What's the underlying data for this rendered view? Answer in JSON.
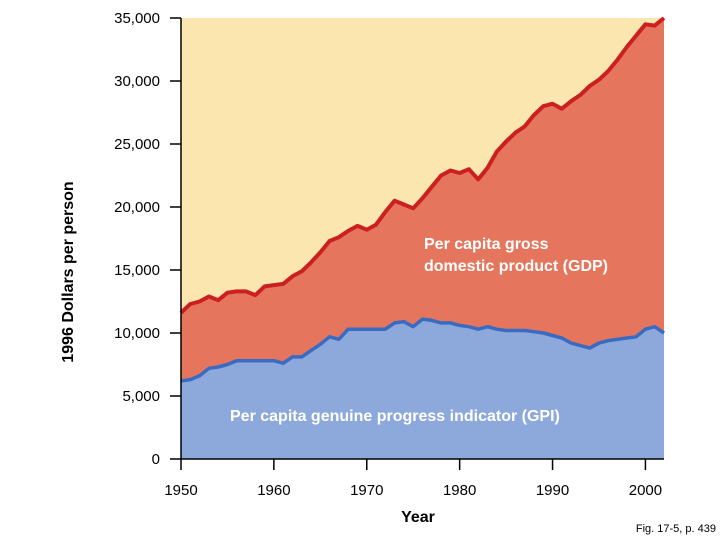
{
  "chart_data": {
    "type": "area",
    "title": "",
    "xlabel": "Year",
    "ylabel": "1996 Dollars per person",
    "xlim": [
      1950,
      2002
    ],
    "ylim": [
      0,
      35000
    ],
    "x_ticks": [
      1950,
      1960,
      1970,
      1980,
      1990,
      2000
    ],
    "y_ticks": [
      0,
      5000,
      10000,
      15000,
      20000,
      25000,
      30000,
      35000
    ],
    "y_tick_labels": [
      "0",
      "5,000",
      "10,000",
      "15,000",
      "20,000",
      "25,000",
      "30,000",
      "35,000"
    ],
    "x": [
      1950,
      1951,
      1952,
      1953,
      1954,
      1955,
      1956,
      1957,
      1958,
      1959,
      1960,
      1961,
      1962,
      1963,
      1964,
      1965,
      1966,
      1967,
      1968,
      1969,
      1970,
      1971,
      1972,
      1973,
      1974,
      1975,
      1976,
      1977,
      1978,
      1979,
      1980,
      1981,
      1982,
      1983,
      1984,
      1985,
      1986,
      1987,
      1988,
      1989,
      1990,
      1991,
      1992,
      1993,
      1994,
      1995,
      1996,
      1997,
      1998,
      1999,
      2000,
      2001,
      2002
    ],
    "series": [
      {
        "name": "Per capita gross domestic product (GDP)",
        "color": "#E5765D",
        "line_color": "#CC1F1F",
        "values": [
          11600,
          12300,
          12500,
          12900,
          12600,
          13200,
          13300,
          13300,
          13000,
          13700,
          13800,
          13900,
          14500,
          14900,
          15600,
          16400,
          17300,
          17600,
          18100,
          18500,
          18200,
          18600,
          19600,
          20500,
          20200,
          19900,
          20700,
          21600,
          22500,
          22900,
          22700,
          23000,
          22200,
          23100,
          24400,
          25200,
          25900,
          26400,
          27300,
          28000,
          28200,
          27800,
          28400,
          28900,
          29600,
          30100,
          30800,
          31700,
          32700,
          33600,
          34500,
          34400,
          35000
        ]
      },
      {
        "name": "Per capita genuine progress indicator (GPI)",
        "color": "#8DA9DC",
        "line_color": "#3A6BC2",
        "values": [
          6200,
          6300,
          6600,
          7200,
          7300,
          7500,
          7800,
          7800,
          7800,
          7800,
          7800,
          7600,
          8100,
          8100,
          8600,
          9100,
          9700,
          9500,
          10300,
          10300,
          10300,
          10300,
          10300,
          10800,
          10900,
          10500,
          11100,
          11000,
          10800,
          10800,
          10600,
          10500,
          10300,
          10500,
          10300,
          10200,
          10200,
          10200,
          10100,
          10000,
          9800,
          9600,
          9200,
          9000,
          8800,
          9200,
          9400,
          9500,
          9600,
          9700,
          10300,
          10500,
          10000
        ]
      }
    ],
    "background_color": "#FBE6AF",
    "annotations": [
      {
        "lines": [
          "Per capita gross",
          "domestic product (GDP)"
        ],
        "series": "GDP"
      },
      {
        "lines": [
          "Per capita genuine progress indicator (GPI)"
        ],
        "series": "GPI"
      }
    ]
  },
  "caption": "Fig. 17-5, p. 439"
}
